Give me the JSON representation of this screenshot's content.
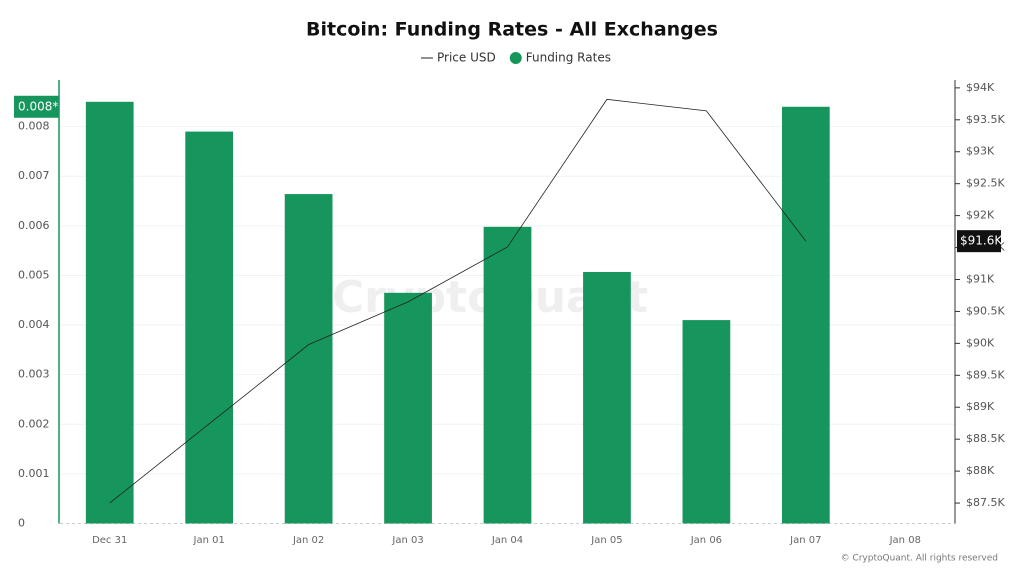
{
  "chart_data": {
    "type": "combo",
    "title": "Bitcoin: Funding Rates - All Exchanges",
    "categories": [
      "Dec 31",
      "Jan 01",
      "Jan 02",
      "Jan 03",
      "Jan 04",
      "Jan 05",
      "Jan 06",
      "Jan 07",
      "Jan 08"
    ],
    "series": [
      {
        "name": "Price USD",
        "type": "line",
        "axis": "y2",
        "color": "#222222",
        "values": [
          87500,
          88740,
          89980,
          90650,
          91510,
          93820,
          93640,
          91600,
          null
        ]
      },
      {
        "name": "Funding Rates",
        "type": "bar",
        "color": "#16965c",
        "values": [
          0.0085,
          0.0079,
          0.00664,
          0.00465,
          0.00598,
          0.00507,
          0.0041,
          0.0084,
          null
        ]
      }
    ],
    "ylim": [
      0,
      0.009
    ],
    "yticks": [
      0,
      0.001,
      0.002,
      0.003,
      0.004,
      0.005,
      0.006,
      0.007,
      0.008
    ],
    "y2lim": [
      87180,
      94170
    ],
    "y2ticks": [
      {
        "value": 87500,
        "label": "$87.5K"
      },
      {
        "value": 88000,
        "label": "$88K"
      },
      {
        "value": 88500,
        "label": "$88.5K"
      },
      {
        "value": 89000,
        "label": "$89K"
      },
      {
        "value": 89500,
        "label": "$89.5K"
      },
      {
        "value": 90000,
        "label": "$90K"
      },
      {
        "value": 90500,
        "label": "$90.5K"
      },
      {
        "value": 91000,
        "label": "$91K"
      },
      {
        "value": 91500,
        "label": "$91.5K"
      },
      {
        "value": 92000,
        "label": "$92K"
      },
      {
        "value": 92500,
        "label": "$92.5K"
      },
      {
        "value": 93000,
        "label": "$93K"
      },
      {
        "value": 93500,
        "label": "$93.5K"
      },
      {
        "value": 94000,
        "label": "$94K"
      }
    ],
    "y_badge": "0.008*",
    "y2_badge": "$91.6K",
    "grid": true,
    "watermark": "CryptoQuant",
    "footer": "© CryptoQuant. All rights reserved"
  }
}
